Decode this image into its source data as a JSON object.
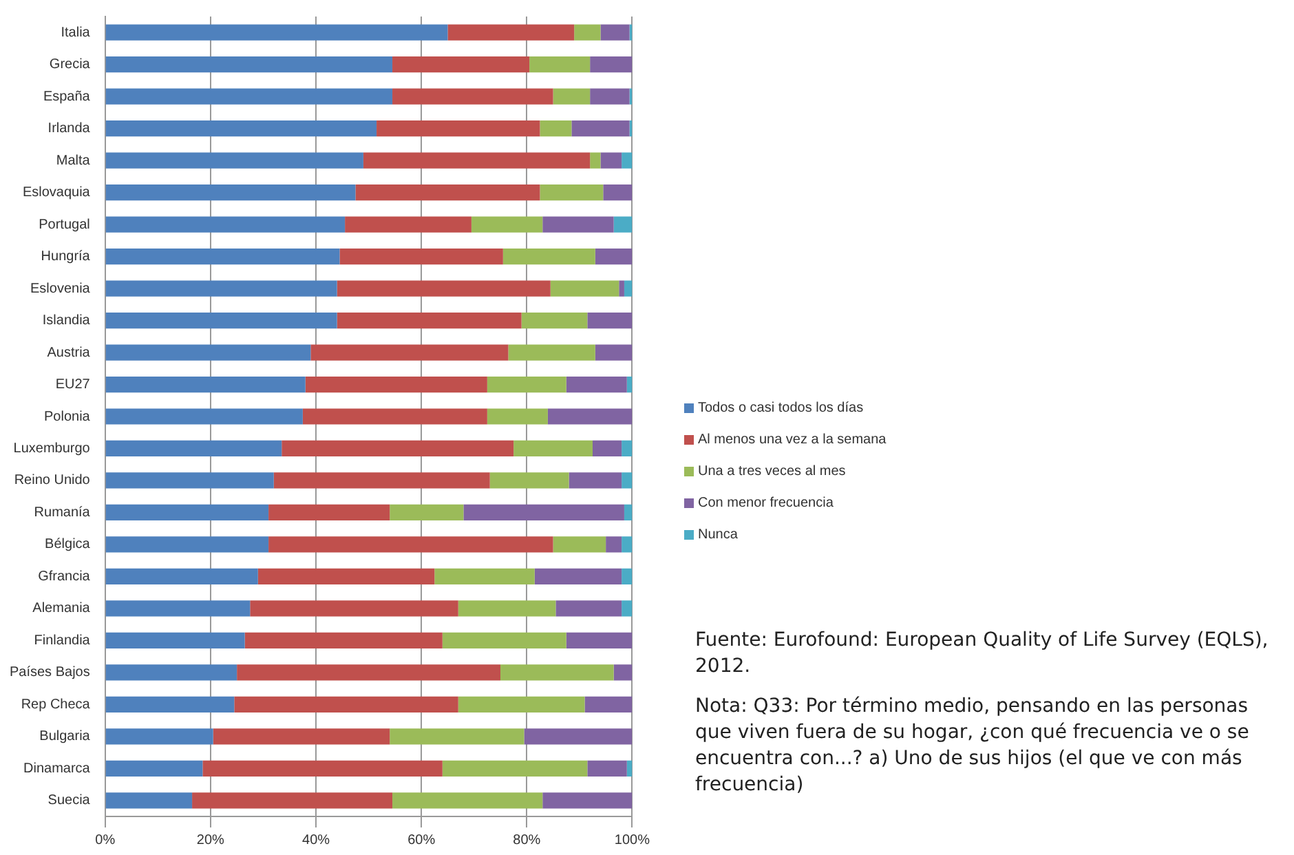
{
  "chart_data": {
    "type": "bar",
    "orientation": "horizontal",
    "stacked": true,
    "grid": "x",
    "legend": "right",
    "categories": [
      "Italia",
      "Grecia",
      "España",
      "Irlanda",
      "Malta",
      "Eslovaquia",
      "Portugal",
      "Hungría",
      "Eslovenia",
      "Islandia",
      "Austria",
      "EU27",
      "Polonia",
      "Luxemburgo",
      "Reino Unido",
      "Rumanía",
      "Bélgica",
      "Gfrancia",
      "Alemania",
      "Finlandia",
      "Países Bajos",
      "Rep Checa",
      "Bulgaria",
      "Dinamarca",
      "Suecia"
    ],
    "series": [
      {
        "name": "Todos o casi todos los días",
        "color": "#4f81bd",
        "values": [
          65,
          54.5,
          54.5,
          51.5,
          49,
          47.5,
          45.5,
          44.5,
          44,
          44,
          39,
          38,
          37.5,
          33.5,
          32,
          31,
          31,
          29,
          27.5,
          26.5,
          25,
          24.5,
          20.5,
          18.5,
          16.5
        ]
      },
      {
        "name": "Al menos una vez a la semana",
        "color": "#c0504d",
        "values": [
          24,
          26,
          30.5,
          31,
          43,
          35,
          24,
          31,
          40.5,
          35,
          37.5,
          34.5,
          35,
          44,
          41,
          23,
          54,
          33.5,
          39.5,
          37.5,
          50,
          42.5,
          33.5,
          45.5,
          38
        ]
      },
      {
        "name": "Una a tres veces al mes",
        "color": "#9bbb59",
        "values": [
          5,
          11.5,
          7,
          6,
          2,
          12,
          13.5,
          17.5,
          13,
          12.5,
          16.5,
          15,
          11.5,
          15,
          15,
          14,
          10,
          19,
          18.5,
          23.5,
          21.5,
          24,
          25.5,
          27.5,
          28.5
        ]
      },
      {
        "name": "Con menor frecuencia",
        "color": "#8064a2",
        "values": [
          5.5,
          8,
          7.5,
          11,
          4,
          5.5,
          13.5,
          7,
          1,
          8.5,
          7,
          11.5,
          16,
          5.5,
          10,
          30.5,
          3,
          16.5,
          12.5,
          12.5,
          3.5,
          9,
          20.5,
          7.5,
          17
        ]
      },
      {
        "name": "Nunca",
        "color": "#4bacc6",
        "values": [
          0.5,
          0,
          0.5,
          0.5,
          2,
          0,
          3.5,
          0,
          1.5,
          0,
          0,
          1,
          0,
          2,
          2,
          1.5,
          2,
          2,
          2,
          0,
          0,
          0,
          0,
          1,
          0
        ]
      }
    ],
    "xlim": [
      0,
      100
    ],
    "xticks": [
      {
        "value": 0,
        "label": "0%"
      },
      {
        "value": 20,
        "label": "20%"
      },
      {
        "value": 40,
        "label": "40%"
      },
      {
        "value": 60,
        "label": "60%"
      },
      {
        "value": 80,
        "label": "80%"
      },
      {
        "value": 100,
        "label": "100%"
      }
    ],
    "annotations": [
      "Fuente: Eurofound: European Quality of Life  Survey (EQLS), 2012.",
      "Nota: Q33: Por término medio, pensando en las personas que viven fuera de su hogar, ¿con qué frecuencia ve o se encuentra con...? a) Uno de sus hijos (el que ve con más frecuencia)"
    ]
  }
}
